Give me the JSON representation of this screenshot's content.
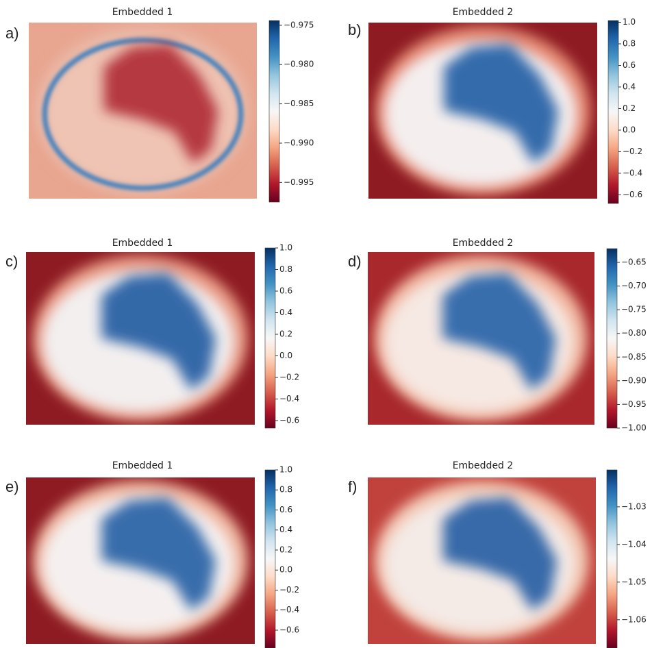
{
  "chart_data": [
    {
      "type": "heatmap",
      "panel_label": "a)",
      "title": "Embedded 1",
      "colormap": "RdBu",
      "clim": [
        -0.9975,
        -0.9744
      ],
      "cticks": [
        {
          "value": -0.975,
          "label": "−0.975"
        },
        {
          "value": -0.98,
          "label": "−0.980"
        },
        {
          "value": -0.985,
          "label": "−0.985"
        },
        {
          "value": -0.99,
          "label": "−0.990"
        },
        {
          "value": -0.995,
          "label": "−0.995"
        }
      ]
    },
    {
      "type": "heatmap",
      "panel_label": "b)",
      "title": "Embedded 2",
      "colormap": "RdBu",
      "clim": [
        -0.68,
        1.016
      ],
      "cticks": [
        {
          "value": 1.0,
          "label": "1.0"
        },
        {
          "value": 0.8,
          "label": "0.8"
        },
        {
          "value": 0.6,
          "label": "0.6"
        },
        {
          "value": 0.4,
          "label": "0.4"
        },
        {
          "value": 0.2,
          "label": "0.2"
        },
        {
          "value": 0.0,
          "label": "0.0"
        },
        {
          "value": -0.2,
          "label": "−0.2"
        },
        {
          "value": -0.4,
          "label": "−0.4"
        },
        {
          "value": -0.6,
          "label": "−0.6"
        }
      ]
    },
    {
      "type": "heatmap",
      "panel_label": "c)",
      "title": "Embedded 1",
      "colormap": "RdBu",
      "clim": [
        -0.67,
        1.0
      ],
      "cticks": [
        {
          "value": 1.0,
          "label": "1.0"
        },
        {
          "value": 0.8,
          "label": "0.8"
        },
        {
          "value": 0.6,
          "label": "0.6"
        },
        {
          "value": 0.4,
          "label": "0.4"
        },
        {
          "value": 0.2,
          "label": "0.2"
        },
        {
          "value": 0.0,
          "label": "0.0"
        },
        {
          "value": -0.2,
          "label": "−0.2"
        },
        {
          "value": -0.4,
          "label": "−0.4"
        },
        {
          "value": -0.6,
          "label": "−0.6"
        }
      ]
    },
    {
      "type": "heatmap",
      "panel_label": "d)",
      "title": "Embedded 2",
      "colormap": "RdBu",
      "clim": [
        -1.0,
        -0.621
      ],
      "cticks": [
        {
          "value": -0.65,
          "label": "−0.65"
        },
        {
          "value": -0.7,
          "label": "−0.70"
        },
        {
          "value": -0.75,
          "label": "−0.75"
        },
        {
          "value": -0.8,
          "label": "−0.80"
        },
        {
          "value": -0.85,
          "label": "−0.85"
        },
        {
          "value": -0.9,
          "label": "−0.90"
        },
        {
          "value": -0.95,
          "label": "−0.95"
        },
        {
          "value": -1.0,
          "label": "−1.00"
        }
      ]
    },
    {
      "type": "heatmap",
      "panel_label": "e)",
      "title": "Embedded 1",
      "colormap": "RdBu",
      "clim": [
        -0.778,
        1.0
      ],
      "cticks": [
        {
          "value": 1.0,
          "label": "1.0"
        },
        {
          "value": 0.8,
          "label": "0.8"
        },
        {
          "value": 0.6,
          "label": "0.6"
        },
        {
          "value": 0.4,
          "label": "0.4"
        },
        {
          "value": 0.2,
          "label": "0.2"
        },
        {
          "value": 0.0,
          "label": "0.0"
        },
        {
          "value": -0.2,
          "label": "−0.2"
        },
        {
          "value": -0.4,
          "label": "−0.4"
        },
        {
          "value": -0.6,
          "label": "−0.6"
        }
      ]
    },
    {
      "type": "heatmap",
      "panel_label": "f)",
      "title": "Embedded 2",
      "colormap": "RdBu",
      "clim": [
        -1.0675,
        -1.0202
      ],
      "cticks": [
        {
          "value": -1.03,
          "label": "−1.03"
        },
        {
          "value": -1.04,
          "label": "−1.04"
        },
        {
          "value": -1.05,
          "label": "−1.05"
        },
        {
          "value": -1.06,
          "label": "−1.06"
        }
      ]
    }
  ]
}
